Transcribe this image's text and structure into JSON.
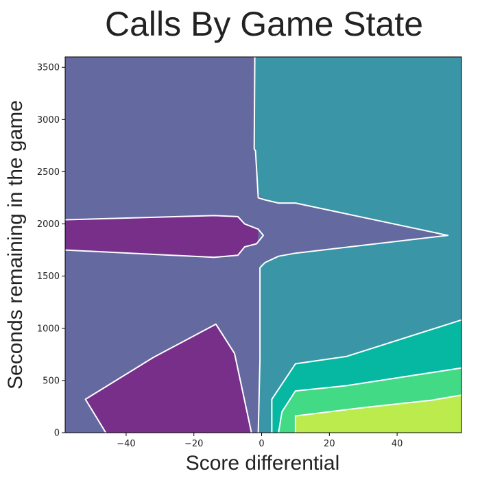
{
  "chart_data": {
    "type": "contour",
    "title": "Calls By Game State",
    "xlabel": "Score differential",
    "ylabel": "Seconds remaining in the game",
    "xlim": [
      -58,
      59
    ],
    "ylim": [
      0,
      3600
    ],
    "x_ticks": [
      -40,
      -20,
      0,
      20,
      40
    ],
    "y_ticks": [
      0,
      500,
      1000,
      1500,
      2000,
      2500,
      3000,
      3500
    ],
    "grid": false,
    "levels": [
      {
        "name": "level-1",
        "color": "#782f8a"
      },
      {
        "name": "level-2",
        "color": "#646aa0"
      },
      {
        "name": "level-3",
        "color": "#3a95a6"
      },
      {
        "name": "level-4",
        "color": "#06b8a2"
      },
      {
        "name": "level-5",
        "color": "#42da85"
      },
      {
        "name": "level-6",
        "color": "#bbeb4c"
      }
    ],
    "regions": [
      {
        "name": "level-3-region",
        "level": 2,
        "points": [
          [
            -2,
            3600
          ],
          [
            59,
            3600
          ],
          [
            59,
            0
          ],
          [
            -1,
            0
          ],
          [
            -0.5,
            700
          ],
          [
            -0.5,
            1580
          ],
          [
            -1,
            2250
          ],
          [
            -1.8,
            2700
          ],
          [
            -2.2,
            2720
          ],
          [
            -2,
            3600
          ]
        ]
      },
      {
        "name": "level-1-upper-region",
        "level": 0,
        "points": [
          [
            -58,
            2040
          ],
          [
            -14,
            2080
          ],
          [
            -7,
            2070
          ],
          [
            -5,
            2000
          ],
          [
            -1,
            1950
          ],
          [
            0.5,
            1890
          ],
          [
            -1.5,
            1810
          ],
          [
            -5,
            1780
          ],
          [
            -7,
            1700
          ],
          [
            -14,
            1680
          ],
          [
            -58,
            1750
          ]
        ]
      },
      {
        "name": "level-2-spike-region",
        "level": 1,
        "points": [
          [
            -1.5,
            2300
          ],
          [
            1,
            2230
          ],
          [
            5,
            2200
          ],
          [
            10,
            2200
          ],
          [
            55,
            1890
          ],
          [
            10,
            1720
          ],
          [
            5,
            1690
          ],
          [
            1,
            1630
          ],
          [
            -1.5,
            1610
          ],
          [
            -1,
            1900
          ]
        ]
      },
      {
        "name": "level-1-lower-region",
        "level": 0,
        "points": [
          [
            -52,
            320
          ],
          [
            -32,
            720
          ],
          [
            -13.5,
            1040
          ],
          [
            -8,
            760
          ],
          [
            -3,
            0
          ],
          [
            -46,
            0
          ]
        ]
      },
      {
        "name": "level-4-region",
        "level": 3,
        "points": [
          [
            3,
            0
          ],
          [
            3,
            320
          ],
          [
            10,
            660
          ],
          [
            25,
            730
          ],
          [
            59,
            1080
          ],
          [
            59,
            0
          ]
        ]
      },
      {
        "name": "level-5-region",
        "level": 4,
        "points": [
          [
            5,
            0
          ],
          [
            6,
            200
          ],
          [
            10,
            400
          ],
          [
            25,
            450
          ],
          [
            59,
            620
          ],
          [
            59,
            0
          ]
        ]
      },
      {
        "name": "level-6-region",
        "level": 5,
        "points": [
          [
            10,
            0
          ],
          [
            10,
            160
          ],
          [
            30,
            240
          ],
          [
            50,
            310
          ],
          [
            59,
            360
          ],
          [
            59,
            0
          ]
        ]
      }
    ],
    "contour_lines": [
      {
        "name": "boundary-2-3",
        "points": [
          [
            -2,
            3600
          ],
          [
            -2.2,
            2720
          ],
          [
            -1.8,
            2700
          ],
          [
            -1,
            2250
          ],
          [
            1,
            2230
          ],
          [
            5,
            2200
          ],
          [
            10,
            2200
          ],
          [
            55,
            1890
          ],
          [
            10,
            1720
          ],
          [
            5,
            1690
          ],
          [
            1,
            1630
          ],
          [
            -0.5,
            1580
          ],
          [
            -0.5,
            700
          ],
          [
            -1,
            0
          ]
        ]
      },
      {
        "name": "boundary-1-2-upper",
        "points": [
          [
            -58,
            2040
          ],
          [
            -14,
            2080
          ],
          [
            -7,
            2070
          ],
          [
            -5,
            2000
          ],
          [
            -1,
            1950
          ],
          [
            0.5,
            1890
          ],
          [
            -1.5,
            1810
          ],
          [
            -5,
            1780
          ],
          [
            -7,
            1700
          ],
          [
            -14,
            1680
          ],
          [
            -58,
            1750
          ]
        ]
      },
      {
        "name": "boundary-1-2-lower",
        "points": [
          [
            -46,
            0
          ],
          [
            -52,
            320
          ],
          [
            -32,
            720
          ],
          [
            -13.5,
            1040
          ],
          [
            -8,
            760
          ],
          [
            -3,
            0
          ]
        ]
      },
      {
        "name": "boundary-3-4",
        "points": [
          [
            3,
            0
          ],
          [
            3,
            320
          ],
          [
            10,
            660
          ],
          [
            25,
            730
          ],
          [
            59,
            1080
          ]
        ]
      },
      {
        "name": "boundary-4-5",
        "points": [
          [
            5,
            0
          ],
          [
            6,
            200
          ],
          [
            10,
            400
          ],
          [
            25,
            450
          ],
          [
            59,
            620
          ]
        ]
      },
      {
        "name": "boundary-5-6",
        "points": [
          [
            10,
            0
          ],
          [
            10,
            160
          ],
          [
            30,
            240
          ],
          [
            50,
            310
          ],
          [
            59,
            360
          ]
        ]
      }
    ]
  }
}
